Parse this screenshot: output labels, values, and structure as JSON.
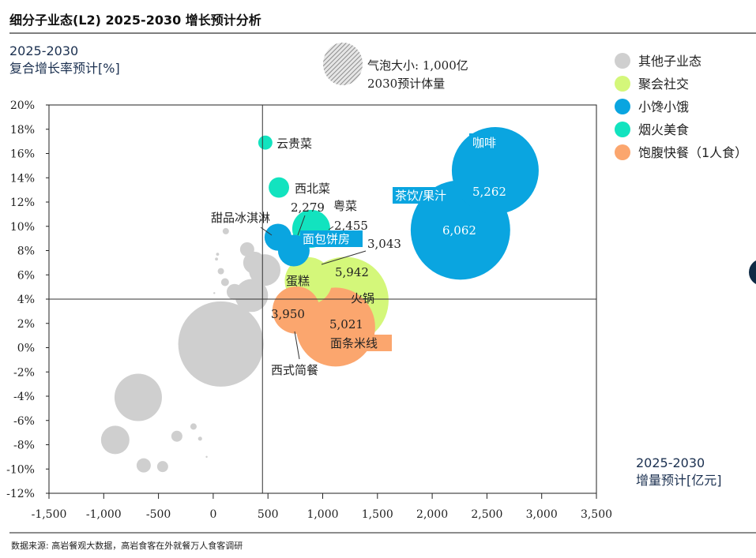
{
  "title": "细分子业态(L2) 2025-2030 增长预计分析",
  "source": "数据来源: 高岩餐观大数据，高岩食客在外就餐万人食客调研",
  "chart_data": {
    "type": "scatter",
    "subtype": "bubble",
    "title": "细分子业态(L2) 2025-2030 增长预计分析",
    "ylabel": [
      "2025-2030",
      "复合增长率预计[%]"
    ],
    "xlabel": [
      "2025-2030",
      "增量预计[亿元]"
    ],
    "xlim": [
      -1500,
      3500
    ],
    "ylim": [
      -12,
      20
    ],
    "x_ticks": [
      "-1,500",
      "-1,000",
      "-500",
      "0",
      "500",
      "1,000",
      "1,500",
      "2,000",
      "2,500",
      "3,000",
      "3,500"
    ],
    "y_ticks": [
      "20%",
      "18%",
      "16%",
      "14%",
      "12%",
      "10%",
      "8%",
      "6%",
      "4%",
      "2%",
      "0%",
      "-2%",
      "-4%",
      "-6%",
      "-8%",
      "-10%",
      "-12%"
    ],
    "reference_lines": {
      "x": 450,
      "y": 4
    },
    "grid": false,
    "size_legend": {
      "line1": "气泡大小: 1,000亿",
      "line2": "2030预计体量",
      "size": 1000
    },
    "legend_position": "top-right",
    "groups": [
      {
        "name": "其他子业态",
        "color": "#cfcfcf"
      },
      {
        "name": "聚会社交",
        "color": "#d4f77a"
      },
      {
        "name": "小馋小饿",
        "color": "#0aa5e0"
      },
      {
        "name": "烟火美食",
        "color": "#12e3bf"
      },
      {
        "name": "饱腹快餐（1人食）",
        "color": "#fba66e"
      }
    ],
    "bubbles": [
      {
        "group": 0,
        "x": 70,
        "y": 0.3,
        "size": 4000
      },
      {
        "group": 0,
        "x": -685,
        "y": -4.1,
        "size": 1235
      },
      {
        "group": 0,
        "x": -895,
        "y": -7.6,
        "size": 444
      },
      {
        "group": 0,
        "x": -635,
        "y": -9.7,
        "size": 111
      },
      {
        "group": 0,
        "x": -462,
        "y": -9.8,
        "size": 67
      },
      {
        "group": 0,
        "x": -332,
        "y": -7.3,
        "size": 67
      },
      {
        "group": 0,
        "x": -180,
        "y": -6.5,
        "size": 22
      },
      {
        "group": 0,
        "x": -120,
        "y": -7.5,
        "size": 9
      },
      {
        "group": 0,
        "x": -60,
        "y": -9.0,
        "size": 2
      },
      {
        "group": 0,
        "x": 115,
        "y": 9.6,
        "size": 22
      },
      {
        "group": 0,
        "x": 310,
        "y": 8.1,
        "size": 111
      },
      {
        "group": 0,
        "x": 375,
        "y": 7.0,
        "size": 270
      },
      {
        "group": 0,
        "x": 470,
        "y": 6.4,
        "size": 550
      },
      {
        "group": 0,
        "x": 195,
        "y": 4.6,
        "size": 137
      },
      {
        "group": 0,
        "x": 350,
        "y": 4.3,
        "size": 600
      },
      {
        "group": 0,
        "x": 108,
        "y": 5.4,
        "size": 34
      },
      {
        "group": 0,
        "x": 70,
        "y": 6.3,
        "size": 22
      },
      {
        "group": 0,
        "x": 30,
        "y": 7.3,
        "size": 5
      },
      {
        "group": 0,
        "x": 40,
        "y": 7.7,
        "size": 5
      },
      {
        "group": 0,
        "x": 10,
        "y": 4.5,
        "size": 2
      },
      {
        "group": 3,
        "x": 476,
        "y": 16.9,
        "size": 110,
        "label": "云贵菜"
      },
      {
        "group": 3,
        "x": 600,
        "y": 13.2,
        "size": 230,
        "label": "西北菜"
      },
      {
        "group": 3,
        "x": 895,
        "y": 9.8,
        "size": 790,
        "label": "粤菜",
        "value_label": "2,455"
      },
      {
        "group": 2,
        "x": 592,
        "y": 9.1,
        "size": 400,
        "label": "甜品冰淇淋"
      },
      {
        "group": 1,
        "x": 1205,
        "y": 3.9,
        "size": 4150,
        "label": "火锅",
        "value_label": "5,942"
      },
      {
        "group": 1,
        "x": 870,
        "y": 5.5,
        "size": 1235,
        "label": "蛋糕",
        "value_label": "3,043"
      },
      {
        "group": 2,
        "x": 736,
        "y": 8.0,
        "size": 550,
        "label": "面包饼房",
        "value_label": "2,279"
      },
      {
        "group": 4,
        "x": 758,
        "y": 3.1,
        "size": 1235,
        "label": "西式简餐",
        "value_label": "3,950"
      },
      {
        "group": 4,
        "x": 1118,
        "y": 1.7,
        "size": 3430,
        "label": "面条米线",
        "value_label": "5,021"
      },
      {
        "group": 2,
        "x": 2576,
        "y": 14.6,
        "size": 4150,
        "label": "咖啡",
        "value_label": "5,262"
      },
      {
        "group": 2,
        "x": 2258,
        "y": 9.7,
        "size": 5440,
        "label": "茶饮/果汁",
        "value_label": "6,062"
      }
    ]
  }
}
